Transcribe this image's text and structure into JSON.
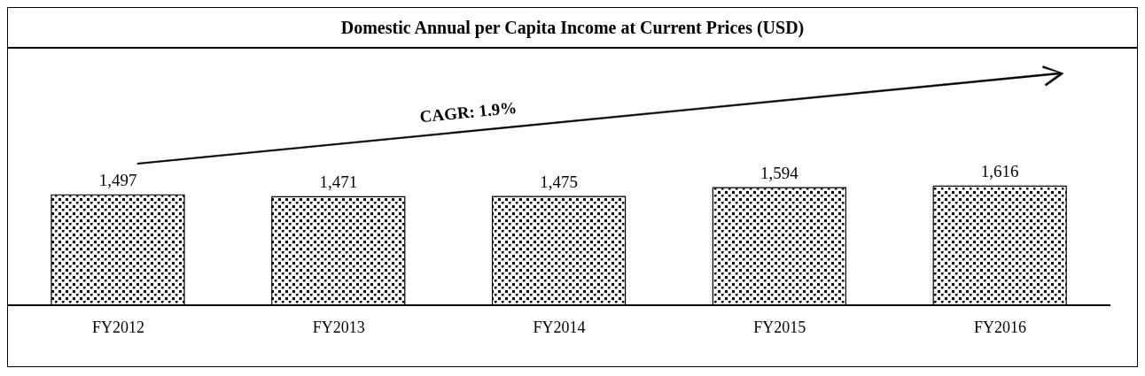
{
  "chart_data": {
    "type": "bar",
    "title": "Domestic Annual per Capita Income at Current Prices (USD)",
    "categories": [
      "FY2012",
      "FY2013",
      "FY2014",
      "FY2015",
      "FY2016"
    ],
    "values": [
      1497,
      1471,
      1475,
      1594,
      1616
    ],
    "value_labels": [
      "1,497",
      "1,471",
      "1,475",
      "1,594",
      "1,616"
    ],
    "color": "#000000",
    "annotations": [
      "CAGR: 1.9%"
    ]
  }
}
